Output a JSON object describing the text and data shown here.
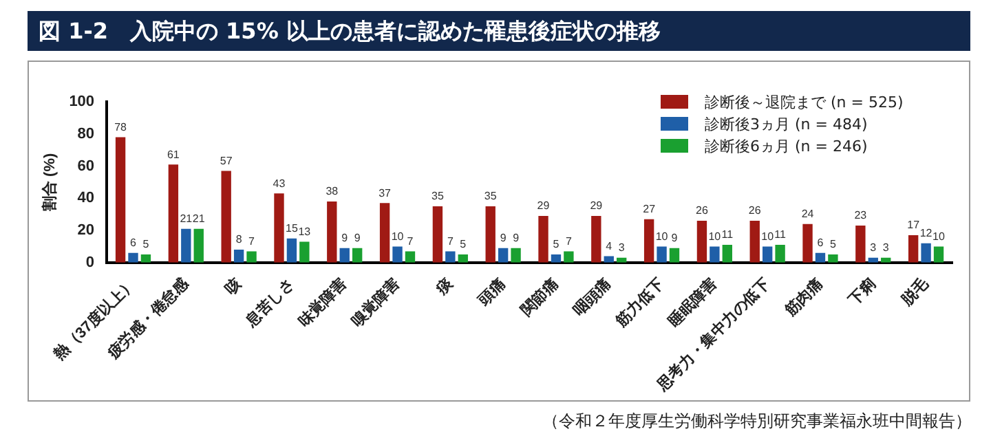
{
  "chart_data": {
    "type": "bar",
    "title": "図 1-2　入院中の 15% 以上の患者に認めた罹患後症状の推移",
    "ylabel": "割合 (%)",
    "categories": [
      "熱（37度以上）",
      "疲労感・倦怠感",
      "咳",
      "息苦しさ",
      "味覚障害",
      "嗅覚障害",
      "痰",
      "頭痛",
      "関節痛",
      "咽頭痛",
      "筋力低下",
      "睡眠障害",
      "思考力・集中力の低下",
      "筋肉痛",
      "下痢",
      "脱毛"
    ],
    "series": [
      {
        "name": "診断後～退院まで (n = 525)",
        "color": "#a01a14",
        "values": [
          78,
          61,
          57,
          43,
          38,
          37,
          35,
          35,
          29,
          29,
          27,
          26,
          26,
          24,
          23,
          17
        ]
      },
      {
        "name": "診断後3ヵ月 (n = 484)",
        "color": "#1f5fa8",
        "values": [
          6,
          21,
          8,
          15,
          9,
          10,
          7,
          9,
          5,
          4,
          10,
          10,
          10,
          6,
          3,
          12
        ]
      },
      {
        "name": "診断後6ヵ月 (n = 246)",
        "color": "#1aa030",
        "values": [
          5,
          21,
          7,
          13,
          9,
          7,
          5,
          9,
          7,
          3,
          9,
          11,
          11,
          5,
          3,
          10
        ]
      }
    ],
    "ylim": [
      0,
      100
    ],
    "yticks": [
      0,
      20,
      40,
      60,
      80,
      100
    ],
    "grid": false,
    "legend": "top right",
    "data_labels": true,
    "annotations": [
      "（令和２年度厚生労働科学特別研究事業福永班中間報告）"
    ]
  }
}
